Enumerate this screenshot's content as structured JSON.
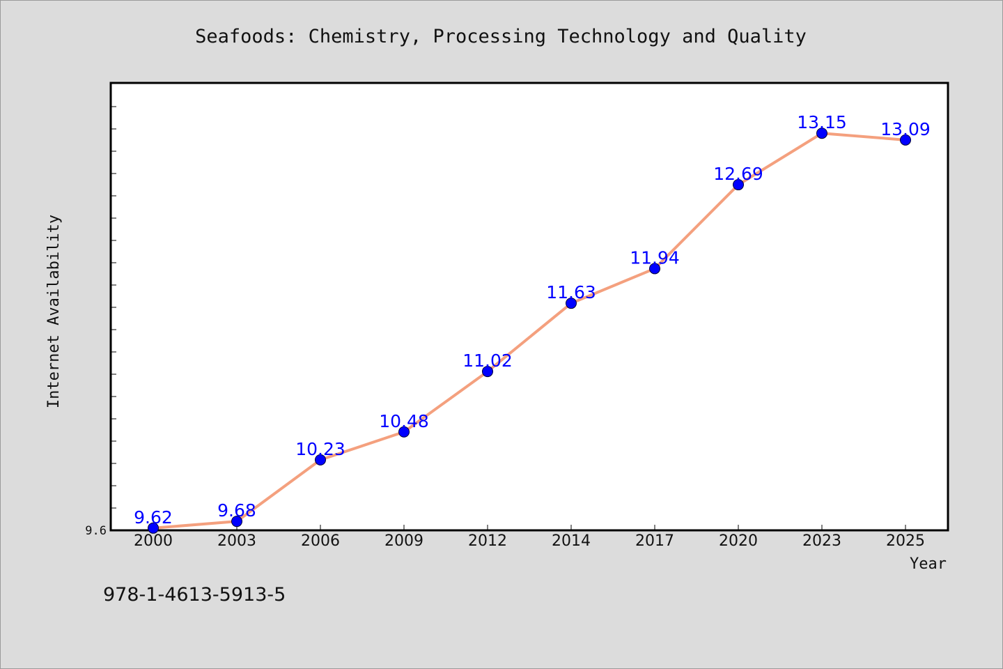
{
  "chart_data": {
    "type": "line",
    "title": "Seafoods: Chemistry, Processing Technology and Quality",
    "xlabel": "Year",
    "ylabel": "Internet Availability",
    "categories": [
      "2000",
      "2003",
      "2006",
      "2009",
      "2012",
      "2014",
      "2017",
      "2020",
      "2023",
      "2025"
    ],
    "series": [
      {
        "values": [
          9.62,
          9.68,
          10.23,
          10.48,
          11.02,
          11.63,
          11.94,
          12.69,
          13.15,
          13.09
        ]
      }
    ],
    "data_labels": [
      "9.62",
      "9.68",
      "10.23",
      "10.48",
      "11.02",
      "11.63",
      "11.94",
      "12.69",
      "13.15",
      "13.09"
    ],
    "ylim": [
      9.6,
      13.6
    ],
    "yticks_labeled": [
      "9.6"
    ],
    "grid": false,
    "legend": "none",
    "line_color": "#f4a07e",
    "marker_color": "#0000ff",
    "label_color": "#0000ff"
  },
  "footnote": "978-1-4613-5913-5"
}
